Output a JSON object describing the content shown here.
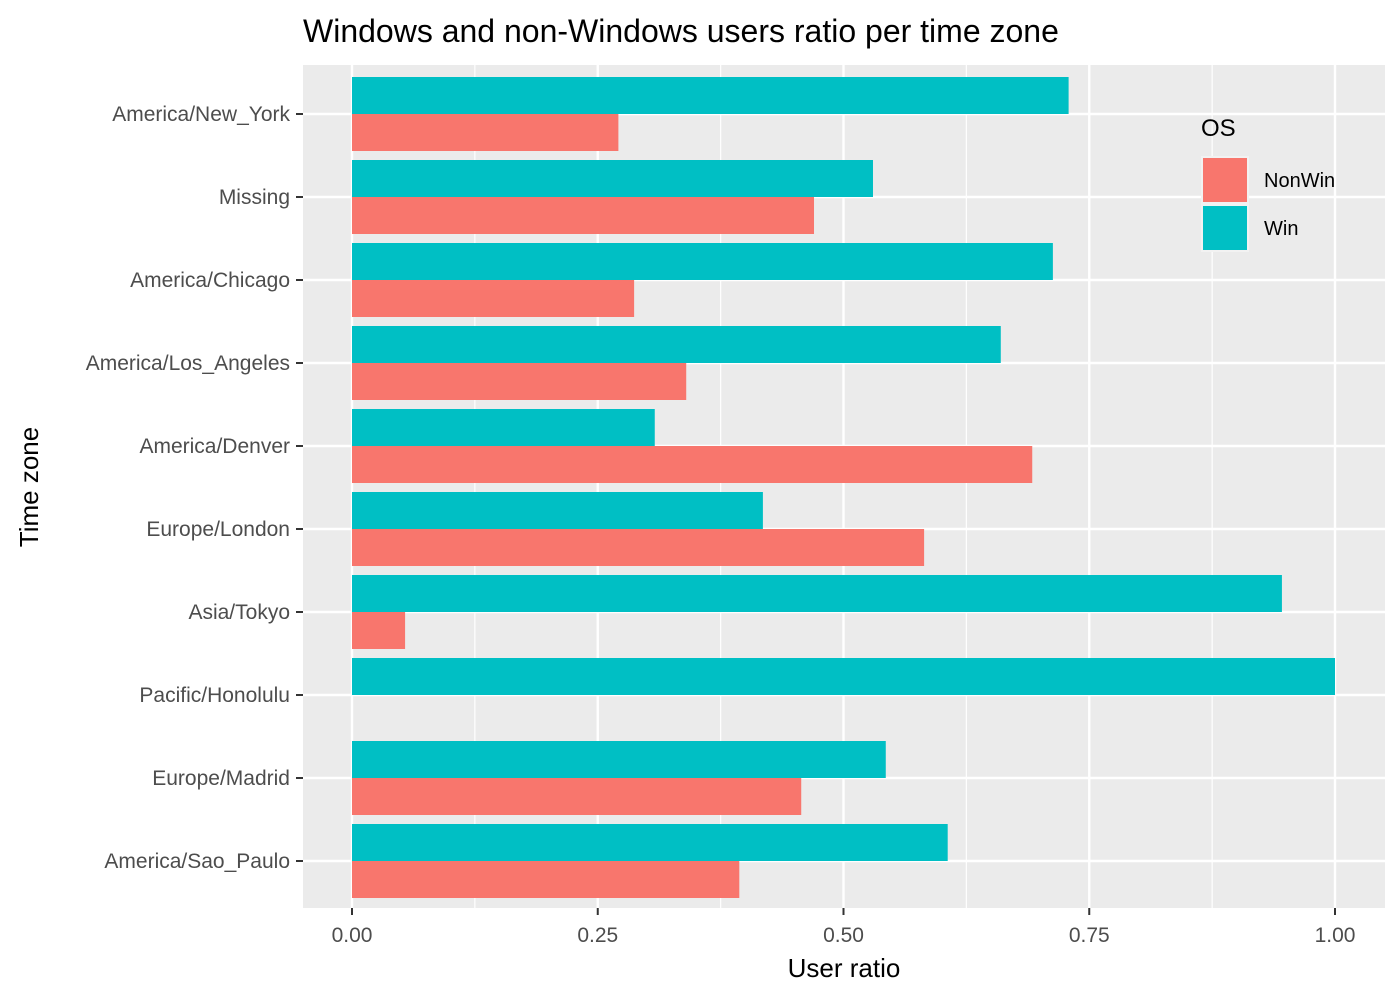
{
  "chart_data": {
    "type": "bar",
    "orientation": "horizontal",
    "title": "Windows and non-Windows users ratio per time zone",
    "xlabel": "User ratio",
    "ylabel": "Time zone",
    "xlim": [
      0,
      1
    ],
    "xticks": [
      "0.00",
      "0.25",
      "0.50",
      "0.75",
      "1.00"
    ],
    "xtick_values": [
      0,
      0.25,
      0.5,
      0.75,
      1.0
    ],
    "grid": true,
    "categories": [
      "America/New_York",
      "Missing",
      "America/Chicago",
      "America/Los_Angeles",
      "America/Denver",
      "Europe/London",
      "Asia/Tokyo",
      "Pacific/Honolulu",
      "Europe/Madrid",
      "America/Sao_Paulo"
    ],
    "series": [
      {
        "name": "NonWin",
        "color": "#F8766D",
        "values": [
          0.271,
          0.47,
          0.287,
          0.34,
          0.692,
          0.582,
          0.054,
          0.0,
          0.457,
          0.394
        ]
      },
      {
        "name": "Win",
        "color": "#00BFC4",
        "values": [
          0.729,
          0.53,
          0.713,
          0.66,
          0.308,
          0.418,
          0.946,
          1.0,
          0.543,
          0.606
        ]
      }
    ],
    "legend": {
      "title": "OS",
      "position": "top-right (inside plot)"
    }
  }
}
